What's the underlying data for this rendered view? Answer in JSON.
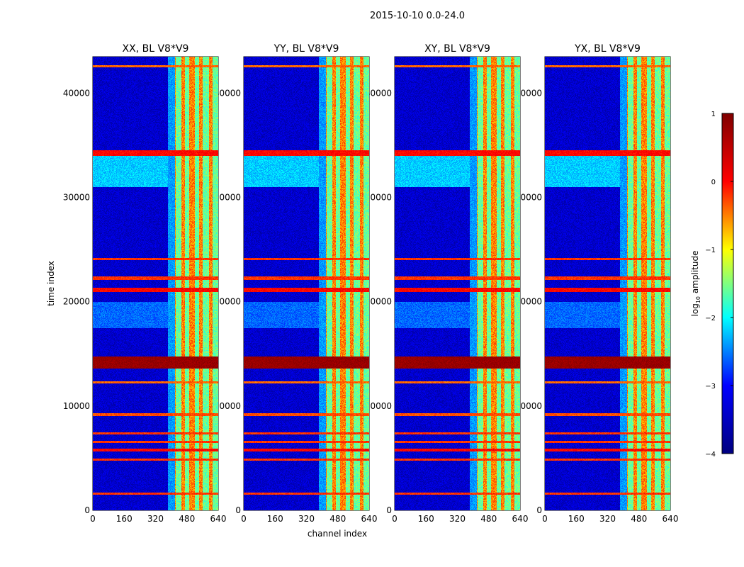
{
  "figure": {
    "suptitle": "2015-10-10 0.0-24.0"
  },
  "colormap": {
    "name": "jet",
    "stops": [
      "#00007f",
      "#0000ff",
      "#00ffff",
      "#ffff00",
      "#ff0000",
      "#7f0000"
    ]
  },
  "chart_data": {
    "type": "heatmap",
    "xlabel": "channel index",
    "ylabel": "time index",
    "xlim": [
      0,
      640
    ],
    "ylim": [
      0,
      43500
    ],
    "xticks": [
      0,
      160,
      320,
      480,
      640
    ],
    "yticks": [
      0,
      10000,
      20000,
      30000,
      40000
    ],
    "panels": [
      {
        "title": "XX, BL V8*V9",
        "pol": "XX"
      },
      {
        "title": "YY, BL V8*V9",
        "pol": "YY"
      },
      {
        "title": "XY, BL V8*V9",
        "pol": "XY"
      },
      {
        "title": "YX, BL V8*V9",
        "pol": "YX"
      }
    ],
    "colorbar": {
      "label": "log10 amplitude",
      "label_base": "log",
      "label_sub": "10",
      "label_rest": " amplitude",
      "range": [
        -4,
        1
      ],
      "ticks": [
        1,
        0,
        -1,
        -2,
        -3,
        -4
      ],
      "tick_labels": [
        "1",
        "0",
        "−1",
        "−2",
        "−3",
        "−4"
      ]
    },
    "features": {
      "background_log10_amp": -3.4,
      "rfi_channel_band": [
        380,
        640
      ],
      "rfi_channel_edges": [
        400,
        420,
        450,
        470,
        490,
        520,
        540,
        560,
        590,
        610
      ],
      "strong_rfi_channels_log10_amp": -0.5,
      "broadband_rfi_times": [
        {
          "t": 1600,
          "w": 200,
          "amp": -0.2
        },
        {
          "t": 4900,
          "w": 250,
          "amp": -0.2
        },
        {
          "t": 5800,
          "w": 300,
          "amp": 0.0
        },
        {
          "t": 6600,
          "w": 200,
          "amp": -0.2
        },
        {
          "t": 7400,
          "w": 200,
          "amp": -0.2
        },
        {
          "t": 9200,
          "w": 250,
          "amp": -0.3
        },
        {
          "t": 12300,
          "w": 250,
          "amp": -0.4
        },
        {
          "t": 14200,
          "w": 1200,
          "amp": 0.8
        },
        {
          "t": 21200,
          "w": 400,
          "amp": 0.0
        },
        {
          "t": 22300,
          "w": 300,
          "amp": -0.2
        },
        {
          "t": 24100,
          "w": 200,
          "amp": -0.2
        },
        {
          "t": 34300,
          "w": 500,
          "amp": 0.0
        },
        {
          "t": 42600,
          "w": 200,
          "amp": -0.4
        }
      ],
      "elevated_time_ranges": [
        {
          "t0": 31000,
          "t1": 34000,
          "amp": -2.2
        },
        {
          "t0": 17500,
          "t1": 20000,
          "amp": -2.6
        }
      ]
    }
  }
}
